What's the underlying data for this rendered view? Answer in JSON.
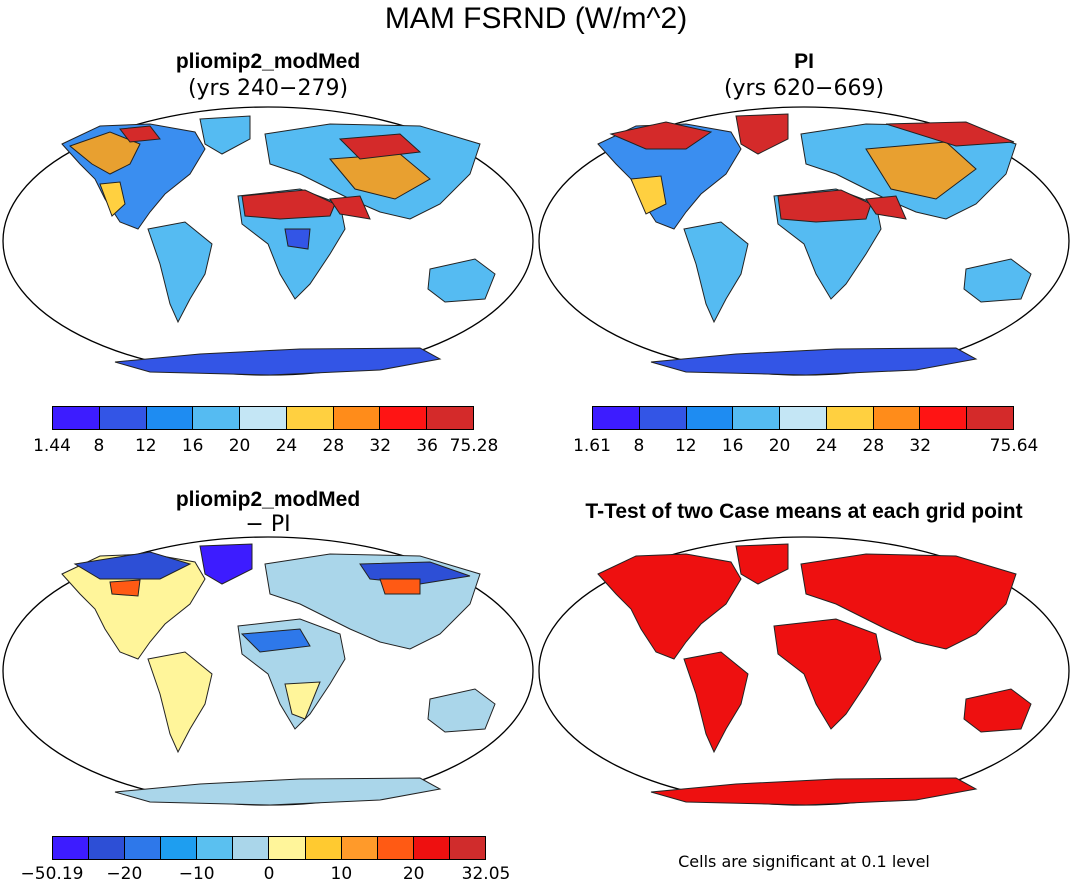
{
  "figure": {
    "title": "MAM FSRND (W/m^2)"
  },
  "panels": [
    {
      "id": "top-left",
      "title": "pliomip2_modMed",
      "subtitle": "(yrs 240−279)",
      "colorbar": {
        "colors": [
          "#3d1cff",
          "#3355e6",
          "#1e8cf2",
          "#55bbf2",
          "#c4e6f5",
          "#ffd040",
          "#ff8c1a",
          "#ff1414",
          "#d42a2a"
        ],
        "labels": [
          "1.44",
          "8",
          "12",
          "16",
          "20",
          "24",
          "28",
          "32",
          "36",
          "75.28"
        ]
      }
    },
    {
      "id": "top-right",
      "title": "PI",
      "subtitle": "(yrs 620−669)",
      "colorbar": {
        "colors": [
          "#3d1cff",
          "#3355e6",
          "#1e8cf2",
          "#55bbf2",
          "#c4e6f5",
          "#ffd040",
          "#ff8c1a",
          "#ff1414",
          "#d42a2a"
        ],
        "labels": [
          "1.61",
          "8",
          "12",
          "16",
          "20",
          "24",
          "28",
          "32",
          "",
          "75.64"
        ]
      }
    },
    {
      "id": "bottom-left",
      "title": "pliomip2_modMed",
      "subtitle": "− PI",
      "colorbar": {
        "colors": [
          "#3d1cff",
          "#2d4fd6",
          "#2e78ea",
          "#1e9ef0",
          "#5ac0f0",
          "#aad6ea",
          "#fff59a",
          "#ffca30",
          "#ff9a2a",
          "#ff5a14",
          "#ee1010",
          "#d02c2c"
        ],
        "labels": [
          "−50.19",
          "−20",
          "−10",
          "0",
          "10",
          "20",
          "32.05"
        ]
      }
    },
    {
      "id": "bottom-right",
      "title": "T-Test of two Case means at each grid point",
      "note": "Cells are significant at 0.1 level"
    }
  ]
}
